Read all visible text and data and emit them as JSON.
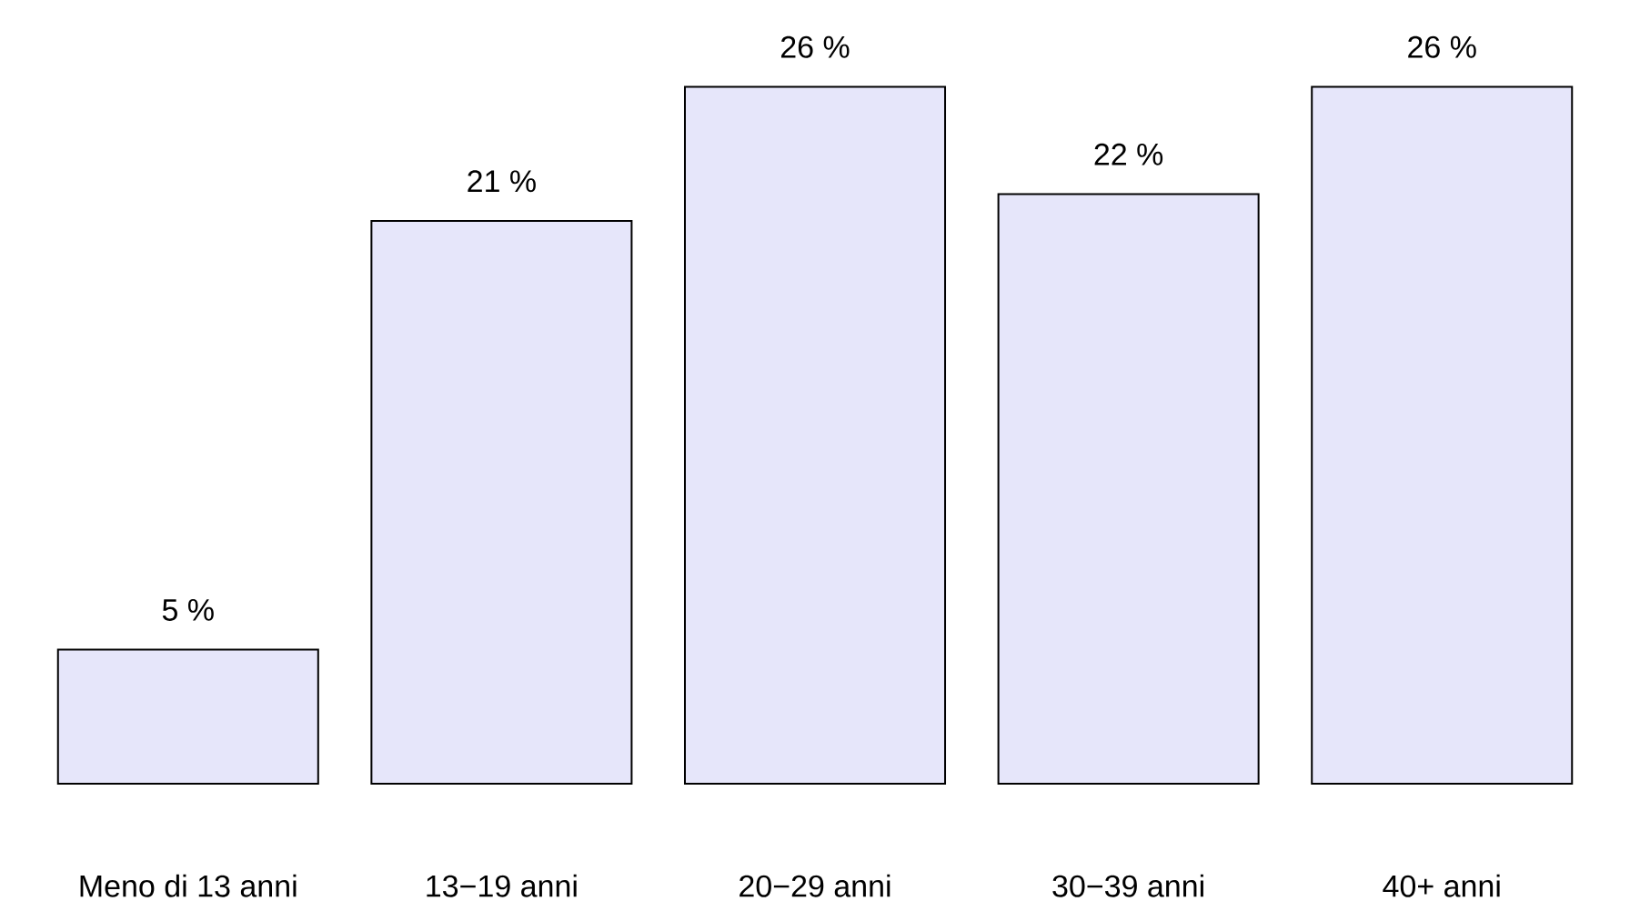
{
  "chart_data": {
    "type": "bar",
    "categories": [
      "Meno di 13 anni",
      "13−19 anni",
      "20−29 anni",
      "30−39 anni",
      "40+ anni"
    ],
    "values": [
      5,
      21,
      26,
      22,
      26
    ],
    "value_labels": [
      "5 %",
      "21 %",
      "26 %",
      "22 %",
      "26 %"
    ],
    "color": "#e6e6fa"
  }
}
